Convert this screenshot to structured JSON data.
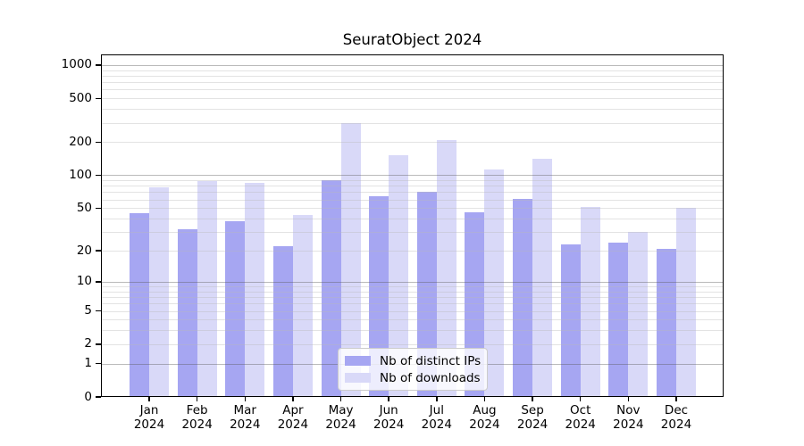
{
  "title": "SeuratObject 2024",
  "legend": {
    "items": [
      {
        "label": "Nb of distinct IPs",
        "color": "#a6a6f2"
      },
      {
        "label": "Nb of downloads",
        "color": "#d9d9f8"
      }
    ]
  },
  "axis": {
    "y_tick_labels": [
      "0",
      "1",
      "2",
      "5",
      "10",
      "20",
      "50",
      "100",
      "200",
      "500",
      "1000"
    ],
    "x_month_labels": [
      "Jan",
      "Feb",
      "Mar",
      "Apr",
      "May",
      "Jun",
      "Jul",
      "Aug",
      "Sep",
      "Oct",
      "Nov",
      "Dec"
    ],
    "x_year_label": "2024"
  },
  "chart_data": {
    "type": "bar",
    "title": "SeuratObject 2024",
    "categories": [
      "Jan 2024",
      "Feb 2024",
      "Mar 2024",
      "Apr 2024",
      "May 2024",
      "Jun 2024",
      "Jul 2024",
      "Aug 2024",
      "Sep 2024",
      "Oct 2024",
      "Nov 2024",
      "Dec 2024"
    ],
    "series": [
      {
        "name": "Nb of distinct IPs",
        "color": "#a6a6f2",
        "values": [
          45,
          32,
          38,
          22,
          90,
          64,
          71,
          46,
          61,
          23,
          24,
          21
        ]
      },
      {
        "name": "Nb of downloads",
        "color": "#d9d9f8",
        "values": [
          78,
          89,
          85,
          43,
          298,
          152,
          210,
          113,
          141,
          51,
          30,
          50
        ]
      }
    ],
    "xlabel": "",
    "ylabel": "",
    "yscale": "log(x+1)",
    "ylim": [
      0,
      1250
    ],
    "yticks": [
      0,
      1,
      2,
      5,
      10,
      20,
      50,
      100,
      200,
      500,
      1000
    ],
    "grid": true,
    "grid_major_at": [
      1,
      10,
      100,
      1000
    ],
    "legend_position": "lower center"
  }
}
